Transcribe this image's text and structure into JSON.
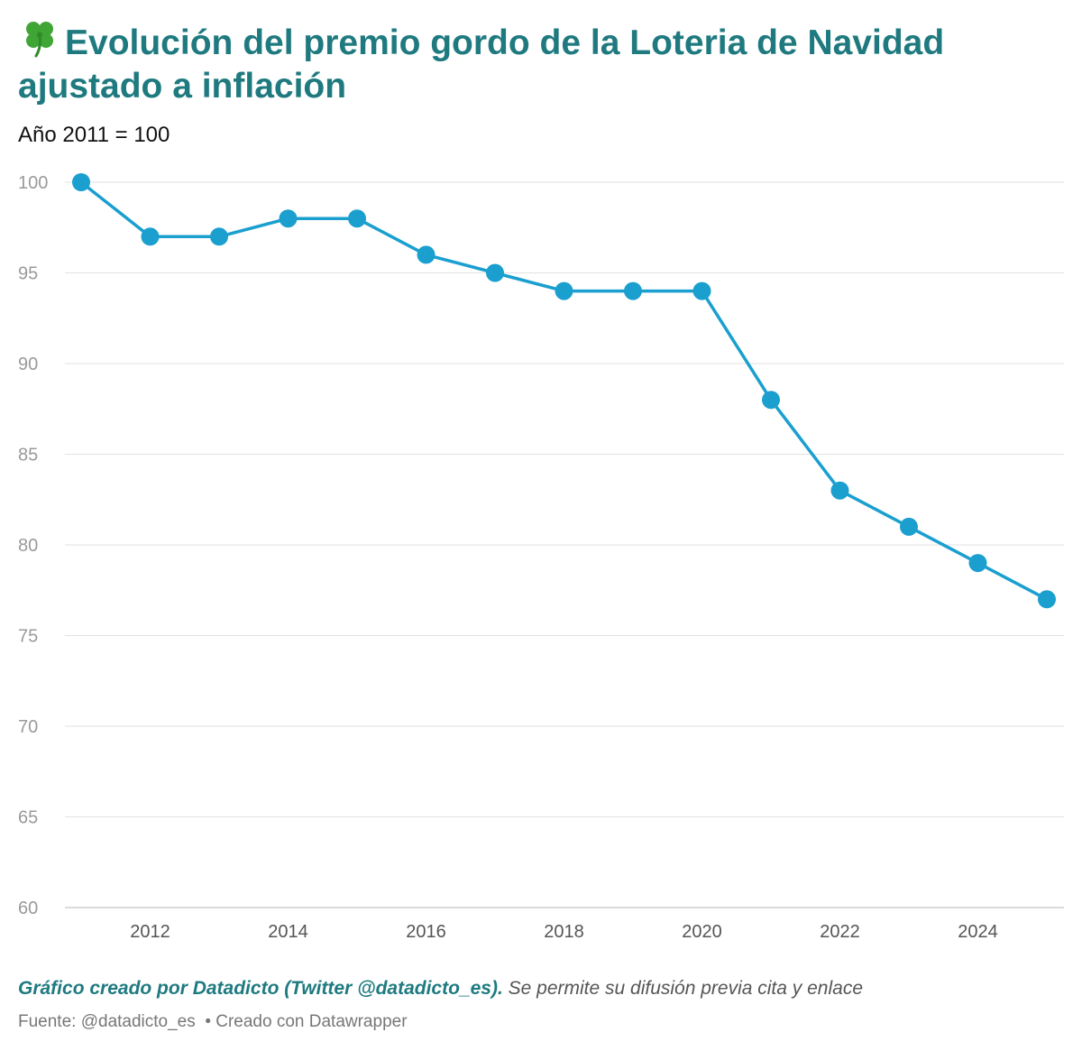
{
  "header": {
    "title": "Evolución del premio gordo de la Loteria de Navidad ajustado a inflación",
    "subtitle": "Año 2011 = 100",
    "title_icon": "four-leaf-clover-icon"
  },
  "footer": {
    "credit_bold": "Gráfico creado por Datadicto (Twitter @datadicto_es).",
    "credit_rest": " Se permite su difusión previa cita y enlace",
    "source": "Fuente: @datadicto_es",
    "made_with": "• Creado con Datawrapper"
  },
  "colors": {
    "title": "#1f7a80",
    "line": "#1a9fcf",
    "grid": "#e2e2e2"
  },
  "chart_data": {
    "type": "line",
    "title": "Evolución del premio gordo de la Loteria de Navidad ajustado a inflación",
    "subtitle": "Año 2011 = 100",
    "xlabel": "",
    "ylabel": "",
    "x": [
      2011,
      2012,
      2013,
      2014,
      2015,
      2016,
      2017,
      2018,
      2019,
      2020,
      2021,
      2022,
      2023,
      2024,
      2025
    ],
    "series": [
      {
        "name": "Premio gordo ajustado a inflación",
        "values": [
          100,
          97,
          97,
          98,
          98,
          96,
          95,
          94,
          94,
          94,
          88,
          83,
          81,
          79,
          77
        ]
      }
    ],
    "xlim": [
      2011,
      2025
    ],
    "ylim": [
      60,
      100
    ],
    "y_ticks": [
      100,
      95,
      90,
      85,
      80,
      75,
      70,
      65,
      60
    ],
    "x_ticks": [
      2012,
      2014,
      2016,
      2018,
      2020,
      2022,
      2024
    ],
    "grid": true,
    "legend": "none"
  }
}
